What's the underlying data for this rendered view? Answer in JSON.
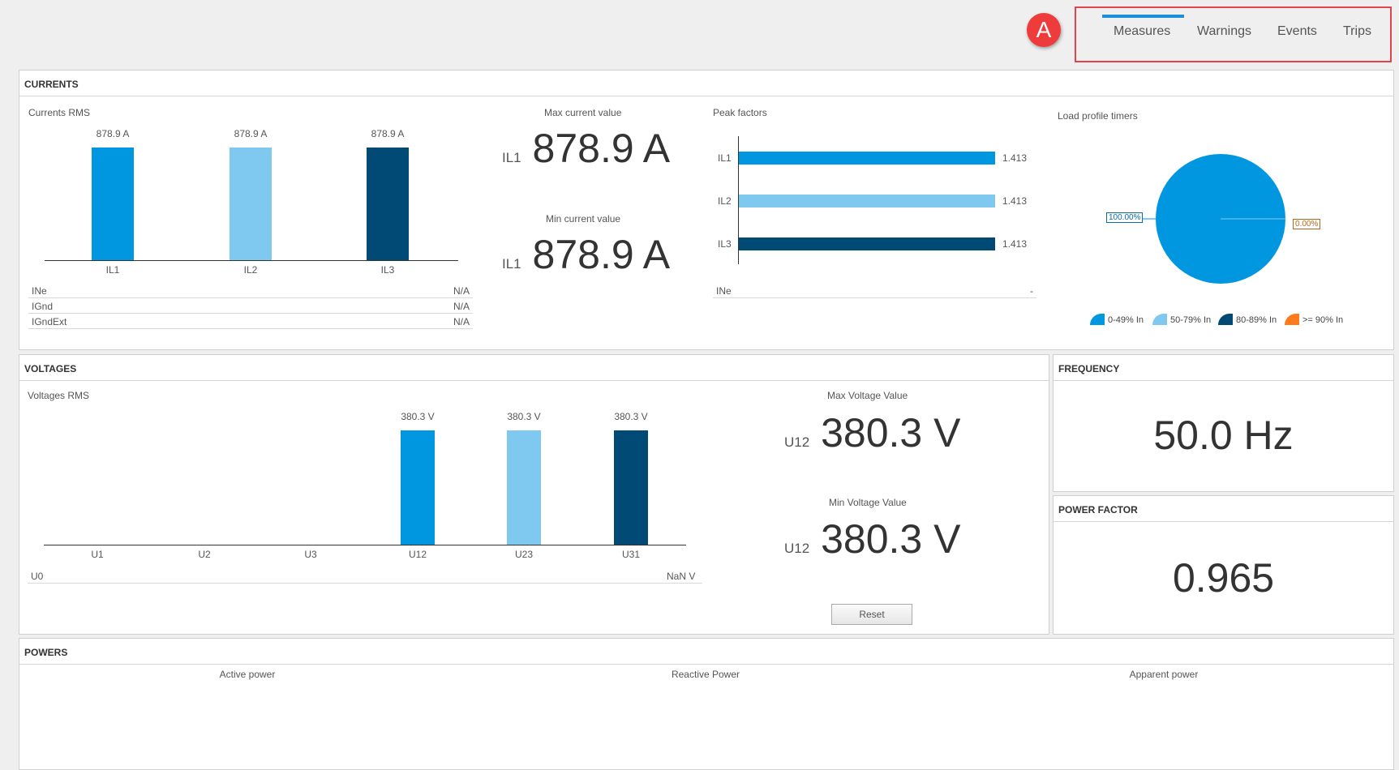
{
  "nav": {
    "badge": "A",
    "tabs": [
      "Measures",
      "Warnings",
      "Events",
      "Trips"
    ],
    "active": "Measures"
  },
  "currents": {
    "title": "CURRENTS",
    "rms_label": "Currents RMS",
    "bars": [
      {
        "label": "IL1",
        "value": 878.9,
        "value_text": "878.9 A"
      },
      {
        "label": "IL2",
        "value": 878.9,
        "value_text": "878.9 A"
      },
      {
        "label": "IL3",
        "value": 878.9,
        "value_text": "878.9 A"
      }
    ],
    "rows": [
      {
        "name": "INe",
        "value": "N/A"
      },
      {
        "name": "IGnd",
        "value": "N/A"
      },
      {
        "name": "IGndExt",
        "value": "N/A"
      }
    ],
    "max_label": "Max current value",
    "max_sub": "IL1",
    "max_value": "878.9 A",
    "min_label": "Min current value",
    "min_sub": "IL1",
    "min_value": "878.9 A",
    "peak": {
      "label": "Peak factors",
      "items": [
        {
          "label": "IL1",
          "value": 1.413,
          "value_text": "1.413"
        },
        {
          "label": "IL2",
          "value": 1.413,
          "value_text": "1.413"
        },
        {
          "label": "IL3",
          "value": 1.413,
          "value_text": "1.413"
        }
      ],
      "ine_label": "INe",
      "ine_value": "-"
    },
    "load_profile": {
      "label": "Load profile timers",
      "slice_labels": [
        "100.00%",
        "0.00%"
      ],
      "legend": [
        "0-49% In",
        "50-79% In",
        "80-89% In",
        ">= 90% In"
      ]
    }
  },
  "voltages": {
    "title": "VOLTAGES",
    "rms_label": "Voltages RMS",
    "bars": [
      {
        "label": "U1",
        "value": 0,
        "value_text": ""
      },
      {
        "label": "U2",
        "value": 0,
        "value_text": ""
      },
      {
        "label": "U3",
        "value": 0,
        "value_text": ""
      },
      {
        "label": "U12",
        "value": 380.3,
        "value_text": "380.3 V"
      },
      {
        "label": "U23",
        "value": 380.3,
        "value_text": "380.3 V"
      },
      {
        "label": "U31",
        "value": 380.3,
        "value_text": "380.3 V"
      }
    ],
    "u0_label": "U0",
    "u0_value": "NaN V",
    "max_label": "Max Voltage Value",
    "max_sub": "U12",
    "max_value": "380.3 V",
    "min_label": "Min Voltage Value",
    "min_sub": "U12",
    "min_value": "380.3 V",
    "reset_label": "Reset"
  },
  "frequency": {
    "title": "FREQUENCY",
    "value": "50.0 Hz"
  },
  "power_factor": {
    "title": "POWER FACTOR",
    "value": "0.965"
  },
  "powers": {
    "title": "POWERS",
    "labels": [
      "Active power",
      "Reactive Power",
      "Apparent power"
    ]
  },
  "colors": {
    "series1": "#0097e0",
    "series2": "#7fc9f1",
    "series3": "#004a75",
    "series4": "#ff7a1a",
    "highlight": "#e0454e"
  }
}
